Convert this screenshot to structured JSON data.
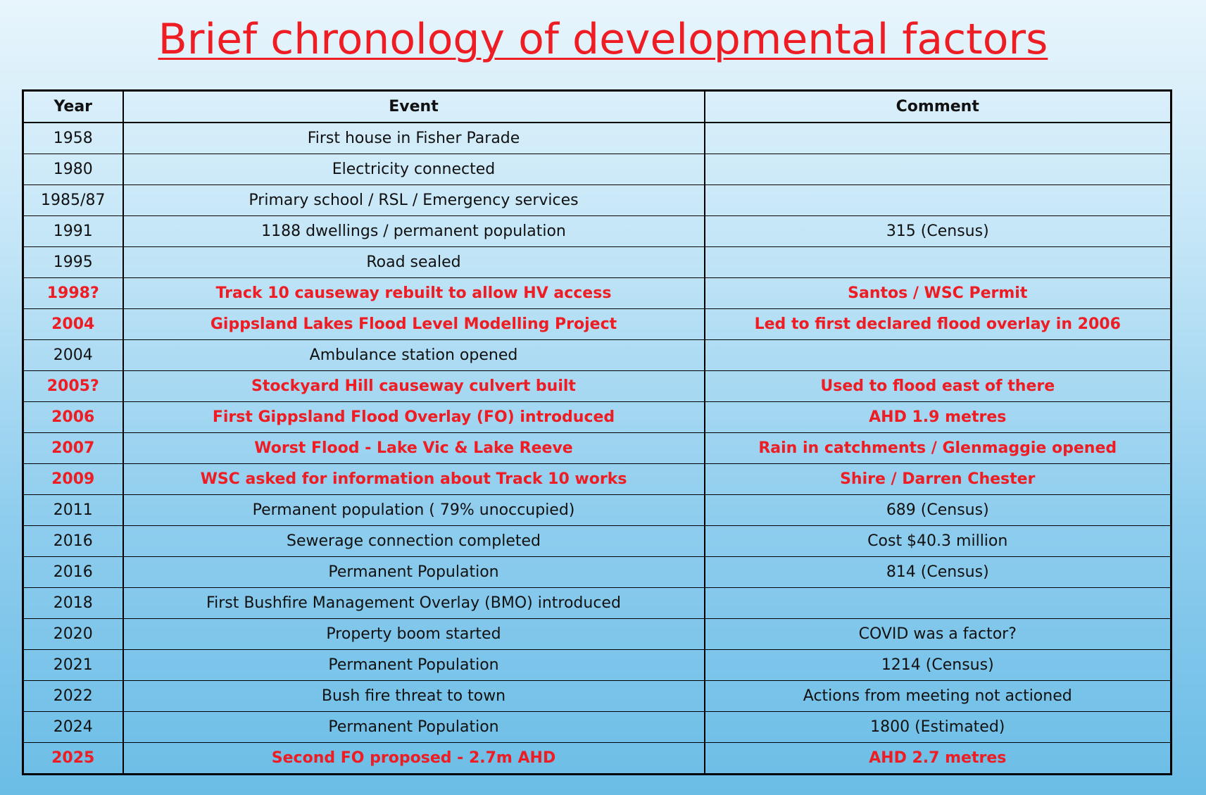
{
  "title": "Brief chronology of developmental factors",
  "colors": {
    "title": "#ee1c23",
    "highlight": "#ee1c23",
    "text": "#111111",
    "background_top": "#e8f5fc",
    "background_bottom": "#6bbde6"
  },
  "table": {
    "headers": [
      "Year",
      "Event",
      "Comment"
    ],
    "rows": [
      {
        "year": "1958",
        "event": "First house in Fisher Parade",
        "comment": "",
        "highlight": false
      },
      {
        "year": "1980",
        "event": "Electricity connected",
        "comment": "",
        "highlight": false
      },
      {
        "year": "1985/87",
        "event": "Primary school / RSL / Emergency services",
        "comment": "",
        "highlight": false
      },
      {
        "year": "1991",
        "event": "1188 dwellings /  permanent population",
        "comment": "315 (Census)",
        "highlight": false
      },
      {
        "year": "1995",
        "event": "Road sealed",
        "comment": "",
        "highlight": false
      },
      {
        "year": "1998?",
        "event": "Track 10 causeway rebuilt to allow HV access",
        "comment": "Santos / WSC  Permit",
        "highlight": true
      },
      {
        "year": "2004",
        "event": "Gippsland Lakes Flood Level Modelling Project",
        "comment": "Led to first declared flood overlay in 2006",
        "highlight": true
      },
      {
        "year": "2004",
        "event": "Ambulance station opened",
        "comment": "",
        "highlight": false
      },
      {
        "year": "2005?",
        "event": "Stockyard Hill causeway culvert built",
        "comment": "Used to flood east of there",
        "highlight": true
      },
      {
        "year": "2006",
        "event": "First Gippsland Flood Overlay (FO)  introduced",
        "comment": "AHD 1.9 metres",
        "highlight": true
      },
      {
        "year": "2007",
        "event": "Worst Flood  -  Lake Vic & Lake Reeve",
        "comment": "Rain in catchments / Glenmaggie opened",
        "highlight": true
      },
      {
        "year": "2009",
        "event": "WSC asked for information about Track 10 works",
        "comment": "Shire / Darren Chester",
        "highlight": true
      },
      {
        "year": "2011",
        "event": "Permanent population ( 79% unoccupied)",
        "comment": "689 (Census)",
        "highlight": false
      },
      {
        "year": "2016",
        "event": "Sewerage connection completed",
        "comment": "Cost $40.3 million",
        "highlight": false
      },
      {
        "year": "2016",
        "event": "Permanent Population",
        "comment": "814 (Census)",
        "highlight": false
      },
      {
        "year": "2018",
        "event": "First Bushfire Management Overlay (BMO) introduced",
        "comment": "",
        "highlight": false
      },
      {
        "year": "2020",
        "event": "Property boom started",
        "comment": "COVID was a factor?",
        "highlight": false
      },
      {
        "year": "2021",
        "event": "Permanent Population",
        "comment": "1214 (Census)",
        "highlight": false
      },
      {
        "year": "2022",
        "event": "Bush fire threat to town",
        "comment": "Actions from meeting not actioned",
        "highlight": false
      },
      {
        "year": "2024",
        "event": "Permanent Population",
        "comment": "1800 (Estimated)",
        "highlight": false
      },
      {
        "year": "2025",
        "event": "Second FO proposed - 2.7m AHD",
        "comment": "AHD 2.7 metres",
        "highlight": true
      }
    ]
  }
}
